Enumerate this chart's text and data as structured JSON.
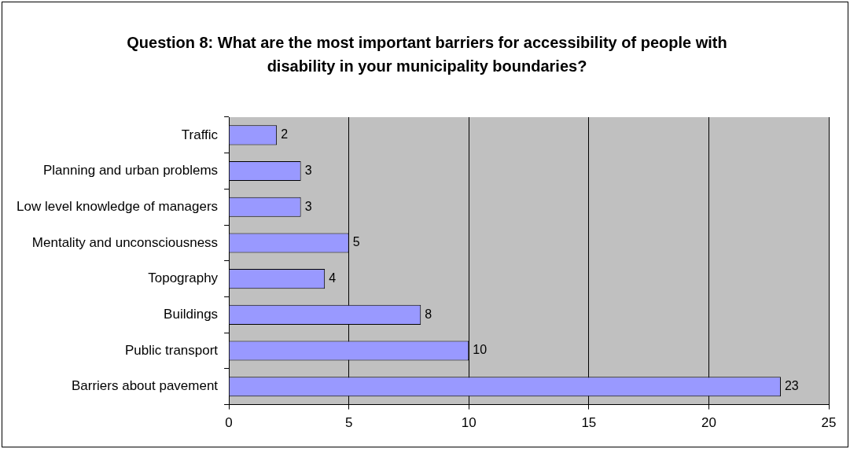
{
  "chart_data": {
    "type": "bar",
    "orientation": "horizontal",
    "title": "Question 8: What are the most important barriers for accessibility of people with disability in your municipality boundaries?",
    "categories": [
      "Traffic",
      "Planning and urban problems",
      "Low level knowledge of managers",
      "Mentality and unconsciousness",
      "Topography",
      "Buildings",
      "Public transport",
      "Barriers about pavement"
    ],
    "values": [
      2,
      3,
      3,
      5,
      4,
      8,
      10,
      23
    ],
    "color": "#9999ff",
    "xlim": [
      0,
      25
    ],
    "xticks": [
      0,
      5,
      10,
      15,
      20,
      25
    ],
    "grid": "x",
    "data_labels": true,
    "legend": false
  }
}
